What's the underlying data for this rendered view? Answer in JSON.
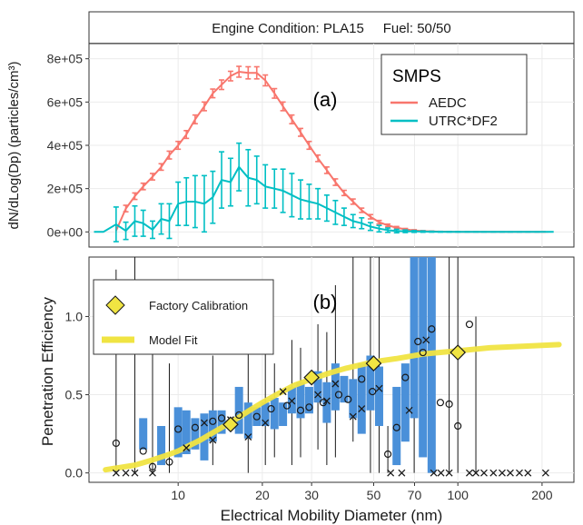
{
  "strip": {
    "text": "Engine Condition: PLA15     Fuel: 50/50"
  },
  "colors": {
    "aedc": "#F8766D",
    "utrc": "#00BFC4",
    "bar": "#4A90D9",
    "model": "#F0E442",
    "factory": "#F0E442"
  },
  "chart_data": [
    {
      "type": "line",
      "panel_label": "(a)",
      "xscale": "log",
      "xlim": [
        4.8,
        260
      ],
      "ylim": [
        -70000,
        870000
      ],
      "ylabel": "dN/dLog(Dp) (particles/cm³)",
      "yticks": [
        0,
        200000,
        400000,
        600000,
        800000
      ],
      "yticklabels": [
        "0e+00",
        "2e+05",
        "4e+05",
        "6e+05",
        "8e+05"
      ],
      "legend": {
        "title": "SMPS",
        "position": "top-right"
      },
      "series": [
        {
          "name": "AEDC",
          "color": "#F8766D",
          "x": [
            6.0,
            6.5,
            7.0,
            7.5,
            8.1,
            8.7,
            9.3,
            10.0,
            10.7,
            11.5,
            12.4,
            13.3,
            14.3,
            15.4,
            16.5,
            17.8,
            19.1,
            20.5,
            22.1,
            23.7,
            25.5,
            27.4,
            29.4,
            31.6,
            34.0,
            36.5,
            39.2,
            42.2,
            45.3,
            48.7,
            52.3,
            56.2,
            60.4,
            64.9,
            69.8,
            75.0,
            80.6,
            86.6,
            93.1,
            100,
            108,
            116,
            124,
            134,
            144,
            154,
            166,
            178,
            192,
            206
          ],
          "y": [
            5000,
            108000,
            165000,
            210000,
            255000,
            300000,
            355000,
            400000,
            450000,
            520000,
            580000,
            640000,
            680000,
            720000,
            740000,
            735000,
            735000,
            700000,
            640000,
            580000,
            520000,
            460000,
            400000,
            340000,
            285000,
            230000,
            180000,
            140000,
            100000,
            70000,
            45000,
            30000,
            20000,
            12000,
            7000,
            4000,
            2500,
            1500,
            1000,
            600,
            400,
            300,
            200,
            100,
            100,
            100,
            100,
            100,
            100,
            100
          ],
          "err": [
            0,
            15000,
            15000,
            15000,
            15000,
            15000,
            18000,
            18000,
            18000,
            20000,
            20000,
            20000,
            22000,
            22000,
            25000,
            28000,
            28000,
            25000,
            22000,
            20000,
            20000,
            18000,
            18000,
            15000,
            15000,
            15000,
            12000,
            12000,
            10000,
            10000,
            8000,
            6000,
            5000,
            4000,
            3000,
            2000,
            1500,
            1000,
            800,
            500,
            400,
            300,
            200,
            100,
            100,
            100,
            100,
            100,
            100,
            100
          ]
        },
        {
          "name": "UTRC*DF2",
          "color": "#00BFC4",
          "x": [
            5.0,
            5.4,
            6.0,
            6.5,
            7.0,
            7.5,
            8.1,
            8.7,
            9.3,
            10.0,
            10.7,
            11.5,
            12.4,
            13.3,
            14.3,
            15.4,
            16.5,
            17.8,
            19.1,
            20.5,
            22.1,
            23.7,
            25.5,
            27.4,
            29.4,
            31.6,
            34.0,
            36.5,
            39.2,
            42.2,
            45.3,
            48.7,
            52.3,
            56.2,
            60.4,
            64.9,
            69.8,
            75.0,
            80.6,
            86.6,
            93.1,
            100,
            108,
            116,
            124,
            134,
            144,
            154,
            166,
            178,
            192,
            206,
            220
          ],
          "y": [
            0,
            0,
            35000,
            5000,
            50000,
            40000,
            10000,
            60000,
            50000,
            130000,
            140000,
            140000,
            130000,
            160000,
            240000,
            230000,
            300000,
            250000,
            240000,
            210000,
            200000,
            190000,
            170000,
            150000,
            140000,
            130000,
            110000,
            90000,
            70000,
            50000,
            40000,
            25000,
            15000,
            8000,
            4000,
            3000,
            2000,
            1500,
            1000,
            600,
            300,
            200,
            100,
            100,
            100,
            100,
            100,
            100,
            100,
            100,
            100,
            0,
            0
          ],
          "err": [
            0,
            0,
            80000,
            40000,
            70000,
            60000,
            40000,
            70000,
            80000,
            100000,
            110000,
            120000,
            130000,
            120000,
            130000,
            110000,
            110000,
            130000,
            110000,
            100000,
            90000,
            100000,
            100000,
            90000,
            80000,
            70000,
            60000,
            55000,
            40000,
            30000,
            25000,
            18000,
            15000,
            10000,
            8000,
            6000,
            4000,
            3000,
            2000,
            1500,
            1000,
            800,
            500,
            300,
            200,
            200,
            200,
            200,
            200,
            200,
            200,
            0,
            0
          ]
        }
      ]
    },
    {
      "type": "scatter",
      "panel_label": "(b)",
      "xscale": "log",
      "xlim": [
        4.8,
        260
      ],
      "ylim": [
        -0.06,
        1.38
      ],
      "xlabel": "Electrical Mobility Diameter (nm)",
      "ylabel": "Penetration Efficiency",
      "xticks": [
        10,
        20,
        30,
        50,
        70,
        100,
        200
      ],
      "xticklabels": [
        "10",
        "20",
        "30",
        "50",
        "70",
        "100",
        "200"
      ],
      "yticks": [
        0,
        0.5,
        1.0
      ],
      "yticklabels": [
        "0.0",
        "0.5",
        "1.0"
      ],
      "legend": {
        "position": "top-left",
        "entries": [
          "Factory Calibration",
          "Model Fit"
        ]
      },
      "factory_calibration": {
        "x": [
          15.4,
          30,
          50,
          100
        ],
        "y": [
          0.31,
          0.61,
          0.7,
          0.77
        ]
      },
      "model_fit": {
        "x": [
          5.5,
          7,
          8,
          9,
          10,
          12,
          14,
          16,
          18,
          20,
          23,
          26,
          30,
          35,
          40,
          50,
          60,
          75,
          100,
          130,
          170,
          230
        ],
        "y": [
          0.02,
          0.05,
          0.08,
          0.11,
          0.14,
          0.21,
          0.28,
          0.34,
          0.4,
          0.45,
          0.51,
          0.56,
          0.6,
          0.64,
          0.67,
          0.71,
          0.73,
          0.76,
          0.78,
          0.8,
          0.81,
          0.82
        ]
      },
      "range_bars": {
        "x": [
          7.5,
          8.7,
          10.0,
          10.7,
          11.5,
          12.4,
          13.3,
          14.3,
          16.5,
          17.8,
          19.1,
          20.5,
          22.1,
          23.7,
          25.5,
          27.4,
          29.4,
          31.6,
          34.0,
          36.5,
          39.2,
          42.2,
          45.3,
          48.7,
          52.3,
          60.4,
          64.9,
          69.8,
          75.0,
          80.6
        ],
        "low": [
          0.15,
          0.05,
          0.1,
          0.12,
          0.15,
          0.08,
          0.2,
          0.25,
          0.25,
          0.22,
          0.3,
          0.3,
          0.28,
          0.3,
          0.38,
          0.35,
          0.38,
          0.45,
          0.32,
          0.4,
          0.45,
          0.35,
          0.25,
          0.4,
          0.3,
          0.05,
          0.2,
          0.35,
          0.1,
          0.0
        ],
        "high": [
          0.35,
          0.3,
          0.42,
          0.4,
          0.35,
          0.38,
          0.4,
          0.4,
          0.55,
          0.45,
          0.42,
          0.45,
          0.48,
          0.45,
          0.55,
          0.58,
          0.55,
          0.65,
          0.58,
          0.7,
          0.62,
          0.6,
          0.7,
          0.75,
          0.68,
          0.55,
          0.7,
          1.38,
          1.38,
          1.38
        ]
      },
      "whiskers": {
        "x": [
          6.0,
          7.0,
          8.1,
          9.3,
          13.3,
          17.8,
          20.5,
          22.1,
          25.5,
          27.4,
          31.6,
          34.0,
          36.5,
          42.2,
          48.7,
          52.3,
          56.2,
          69.8,
          80.6,
          93.1,
          100,
          116
        ],
        "low": [
          0.0,
          0.0,
          0.0,
          0.0,
          0.05,
          0.0,
          0.05,
          0.1,
          0.05,
          0.1,
          0.15,
          0.05,
          0.1,
          0.2,
          0.0,
          0.0,
          0.0,
          0.0,
          0.0,
          0.0,
          0.0,
          0.0
        ],
        "high": [
          1.3,
          1.38,
          0.85,
          0.7,
          0.75,
          0.9,
          0.8,
          0.7,
          0.85,
          0.8,
          0.95,
          0.9,
          1.2,
          1.38,
          1.38,
          1.38,
          0.3,
          1.38,
          1.38,
          1.38,
          1.38,
          1.0
        ]
      },
      "circles": {
        "x": [
          6.0,
          7.5,
          8.1,
          9.3,
          10.0,
          11.5,
          13.3,
          14.3,
          16.5,
          19.1,
          21.5,
          24.5,
          27.4,
          29.4,
          33.0,
          37.5,
          40.5,
          45.3,
          49.5,
          56.2,
          60.4,
          64.9,
          72.0,
          75.0,
          80.6,
          86.6,
          93.1,
          100,
          110
        ],
        "y": [
          0.19,
          0.14,
          0.04,
          0.07,
          0.28,
          0.29,
          0.33,
          0.35,
          0.37,
          0.36,
          0.41,
          0.43,
          0.4,
          0.42,
          0.45,
          0.5,
          0.47,
          0.6,
          0.52,
          0.12,
          0.29,
          0.61,
          0.84,
          0.77,
          0.92,
          0.45,
          0.44,
          0.3,
          0.95
        ]
      },
      "crosses": {
        "x": [
          6.0,
          6.5,
          7.0,
          8.1,
          10.7,
          12.4,
          13.3,
          15.4,
          17.8,
          20.5,
          23.7,
          25.5,
          31.6,
          34.0,
          36.5,
          42.2,
          45.3,
          52.3,
          57.5,
          63.0,
          67.0,
          77.0,
          82.0,
          87.0,
          93.1,
          110,
          116,
          124,
          134,
          144,
          154,
          166,
          178,
          206
        ],
        "y": [
          0.0,
          0.0,
          0.0,
          0.0,
          0.16,
          0.32,
          0.21,
          0.34,
          0.23,
          0.32,
          0.52,
          0.46,
          0.5,
          0.46,
          0.57,
          0.36,
          0.41,
          0.54,
          0.0,
          0.0,
          0.4,
          0.85,
          0.0,
          0.0,
          0.0,
          0.0,
          0.0,
          0.0,
          0.0,
          0.0,
          0.0,
          0.0,
          0.0,
          0.0
        ]
      }
    }
  ]
}
